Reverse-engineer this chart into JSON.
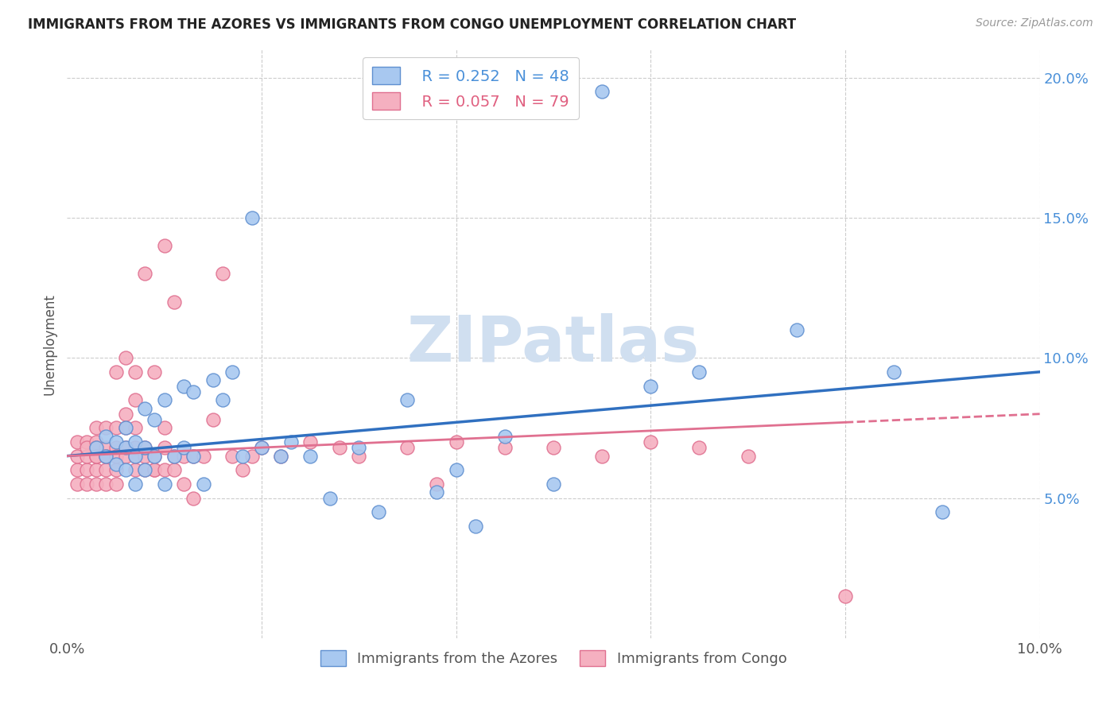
{
  "title": "IMMIGRANTS FROM THE AZORES VS IMMIGRANTS FROM CONGO UNEMPLOYMENT CORRELATION CHART",
  "source": "Source: ZipAtlas.com",
  "ylabel": "Unemployment",
  "x_min": 0.0,
  "x_max": 0.1,
  "y_min": 0.0,
  "y_max": 0.21,
  "azores_R": 0.252,
  "azores_N": 48,
  "congo_R": 0.057,
  "congo_N": 79,
  "azores_color": "#a8c8f0",
  "congo_color": "#f5b0c0",
  "azores_edge_color": "#6090d0",
  "congo_edge_color": "#e07090",
  "trend_azores_color": "#3070c0",
  "trend_congo_color": "#e07090",
  "watermark": "ZIPatlas",
  "watermark_color": "#d0dff0",
  "legend_label_azores": "R = 0.252   N = 48",
  "legend_label_congo": "R = 0.057   N = 79",
  "bottom_label_azores": "Immigrants from the Azores",
  "bottom_label_congo": "Immigrants from Congo",
  "azores_x": [
    0.003,
    0.004,
    0.004,
    0.005,
    0.005,
    0.006,
    0.006,
    0.006,
    0.007,
    0.007,
    0.007,
    0.008,
    0.008,
    0.008,
    0.009,
    0.009,
    0.01,
    0.01,
    0.011,
    0.012,
    0.012,
    0.013,
    0.013,
    0.014,
    0.015,
    0.016,
    0.017,
    0.018,
    0.019,
    0.02,
    0.022,
    0.023,
    0.025,
    0.027,
    0.03,
    0.032,
    0.035,
    0.038,
    0.04,
    0.042,
    0.045,
    0.05,
    0.055,
    0.06,
    0.065,
    0.075,
    0.085,
    0.09
  ],
  "azores_y": [
    0.068,
    0.065,
    0.072,
    0.062,
    0.07,
    0.068,
    0.06,
    0.075,
    0.055,
    0.07,
    0.065,
    0.06,
    0.068,
    0.082,
    0.065,
    0.078,
    0.055,
    0.085,
    0.065,
    0.068,
    0.09,
    0.088,
    0.065,
    0.055,
    0.092,
    0.085,
    0.095,
    0.065,
    0.15,
    0.068,
    0.065,
    0.07,
    0.065,
    0.05,
    0.068,
    0.045,
    0.085,
    0.052,
    0.06,
    0.04,
    0.072,
    0.055,
    0.195,
    0.09,
    0.095,
    0.11,
    0.095,
    0.045
  ],
  "congo_x": [
    0.001,
    0.001,
    0.001,
    0.001,
    0.002,
    0.002,
    0.002,
    0.002,
    0.002,
    0.003,
    0.003,
    0.003,
    0.003,
    0.003,
    0.003,
    0.003,
    0.004,
    0.004,
    0.004,
    0.004,
    0.004,
    0.004,
    0.005,
    0.005,
    0.005,
    0.005,
    0.005,
    0.005,
    0.006,
    0.006,
    0.006,
    0.006,
    0.006,
    0.007,
    0.007,
    0.007,
    0.007,
    0.007,
    0.007,
    0.008,
    0.008,
    0.008,
    0.008,
    0.009,
    0.009,
    0.009,
    0.009,
    0.01,
    0.01,
    0.01,
    0.01,
    0.011,
    0.011,
    0.011,
    0.012,
    0.012,
    0.013,
    0.013,
    0.014,
    0.015,
    0.016,
    0.017,
    0.018,
    0.019,
    0.02,
    0.022,
    0.025,
    0.028,
    0.03,
    0.035,
    0.038,
    0.04,
    0.045,
    0.05,
    0.055,
    0.06,
    0.065,
    0.07,
    0.08
  ],
  "congo_y": [
    0.06,
    0.055,
    0.065,
    0.07,
    0.06,
    0.065,
    0.07,
    0.055,
    0.068,
    0.06,
    0.065,
    0.07,
    0.068,
    0.075,
    0.055,
    0.065,
    0.06,
    0.065,
    0.068,
    0.075,
    0.055,
    0.065,
    0.06,
    0.068,
    0.075,
    0.095,
    0.055,
    0.065,
    0.068,
    0.075,
    0.08,
    0.1,
    0.065,
    0.06,
    0.065,
    0.068,
    0.075,
    0.085,
    0.095,
    0.06,
    0.065,
    0.068,
    0.13,
    0.06,
    0.065,
    0.095,
    0.06,
    0.06,
    0.068,
    0.075,
    0.14,
    0.06,
    0.065,
    0.12,
    0.055,
    0.065,
    0.05,
    0.065,
    0.065,
    0.078,
    0.13,
    0.065,
    0.06,
    0.065,
    0.068,
    0.065,
    0.07,
    0.068,
    0.065,
    0.068,
    0.055,
    0.07,
    0.068,
    0.068,
    0.065,
    0.07,
    0.068,
    0.065,
    0.015
  ]
}
